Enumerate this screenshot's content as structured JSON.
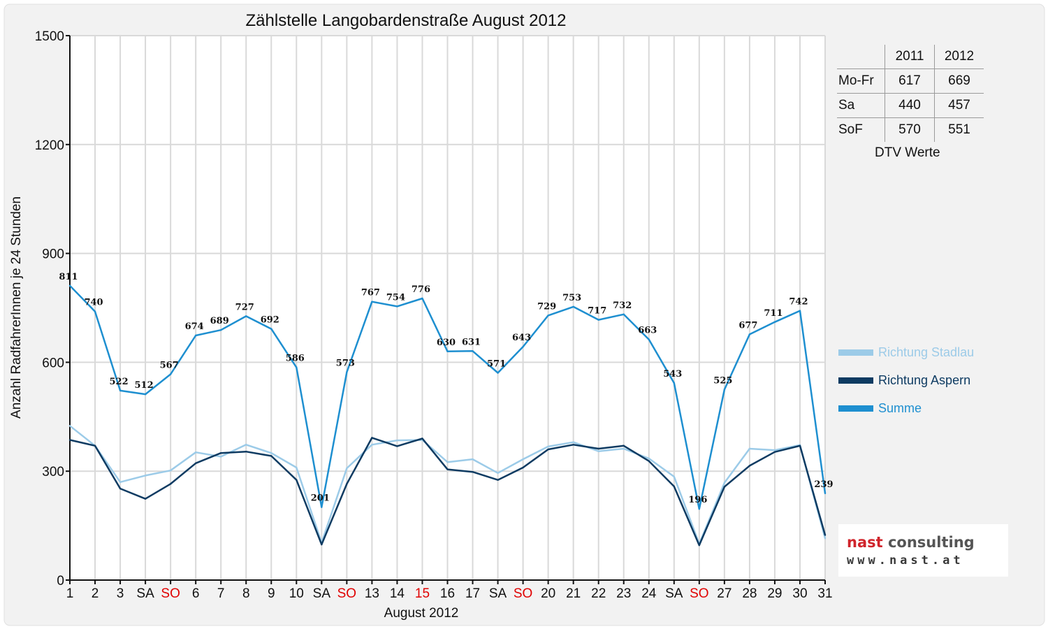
{
  "chart_data": {
    "type": "line",
    "title": "Zählstelle Langobardenstraße August 2012",
    "xlabel": "August 2012",
    "ylabel": "Anzahl RadfahrerInnen je 24 Stunden",
    "ylim": [
      0,
      1500
    ],
    "yticks": [
      0,
      300,
      600,
      900,
      1200,
      1500
    ],
    "grid": true,
    "categories": [
      "1",
      "2",
      "3",
      "SA",
      "SO",
      "6",
      "7",
      "8",
      "9",
      "10",
      "SA",
      "SO",
      "13",
      "14",
      "15",
      "16",
      "17",
      "SA",
      "SO",
      "20",
      "21",
      "22",
      "23",
      "24",
      "SA",
      "SO",
      "27",
      "28",
      "29",
      "30",
      "31"
    ],
    "highlighted_categories": [
      4,
      11,
      14,
      18,
      25
    ],
    "series": [
      {
        "name": "Richtung Stadlau",
        "color": "#9ccbe8",
        "values": [
          425,
          370,
          270,
          288,
          302,
          352,
          340,
          373,
          350,
          310,
          103,
          308,
          373,
          385,
          386,
          325,
          333,
          295,
          333,
          368,
          380,
          355,
          362,
          335,
          285,
          100,
          268,
          362,
          358,
          372,
          115
        ]
      },
      {
        "name": "Richtung Aspern",
        "color": "#0e3b62",
        "values": [
          386,
          370,
          252,
          224,
          265,
          322,
          350,
          354,
          342,
          276,
          98,
          265,
          392,
          369,
          390,
          305,
          298,
          276,
          310,
          360,
          373,
          362,
          370,
          328,
          258,
          96,
          257,
          315,
          353,
          370,
          124
        ]
      },
      {
        "name": "Summe",
        "color": "#1e8fd0",
        "values": [
          811,
          740,
          522,
          512,
          567,
          674,
          689,
          727,
          692,
          586,
          201,
          573,
          767,
          754,
          776,
          630,
          631,
          571,
          643,
          729,
          753,
          717,
          732,
          663,
          543,
          196,
          525,
          677,
          711,
          742,
          239
        ]
      }
    ],
    "data_labels_series": "Summe",
    "legend": "right"
  },
  "dtv": {
    "headers": [
      "2011",
      "2012"
    ],
    "rows": [
      {
        "label": "Mo-Fr",
        "v2011": "617",
        "v2012": "669"
      },
      {
        "label": "Sa",
        "v2011": "440",
        "v2012": "457"
      },
      {
        "label": "SoF",
        "v2011": "570",
        "v2012": "551"
      }
    ],
    "caption": "DTV Werte"
  },
  "logo": {
    "line1_a": "nast",
    "line1_b": "consulting",
    "line2": "www.nast.at"
  },
  "colors": {
    "holiday": "#e00000",
    "background": "#f2f2f2",
    "grid": "#d8d8d8"
  }
}
